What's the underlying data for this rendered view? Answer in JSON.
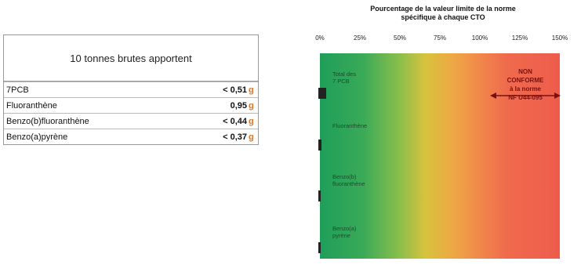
{
  "table": {
    "header": "10 tonnes brutes apportent",
    "unit": "g",
    "rows": [
      {
        "name": "7PCB",
        "value": "< 0,51"
      },
      {
        "name": "Fluoranthène",
        "value": "0,95"
      },
      {
        "name": "Benzo(b)fluoranthène",
        "value": "< 0,44"
      },
      {
        "name": "Benzo(a)pyrène",
        "value": "< 0,37"
      }
    ]
  },
  "chart_data": {
    "type": "bar",
    "orientation": "horizontal",
    "title_line1": "Pourcentage de la valeur limite de la norme",
    "title_line2": "spécifique à chaque CTO",
    "tick_labels": [
      "0%",
      "25%",
      "50%",
      "75%",
      "100%",
      "125%",
      "150%"
    ],
    "xlim": [
      0,
      150
    ],
    "categories": [
      [
        "Total des",
        "7 PCB"
      ],
      [
        "Fluoranthène"
      ],
      [
        "Benzo(b)",
        "fluoranthène"
      ],
      [
        "Benzo(a)",
        "pyrène"
      ]
    ],
    "values": [
      5,
      2,
      1,
      1
    ],
    "annotation": [
      "NON",
      "CONFORME",
      "à la norme",
      "NF U44-095"
    ],
    "colors": {
      "low": "#1f9e5a",
      "mid": "#d8c23d",
      "high": "#ee5c4b",
      "bar": "#222222",
      "annotation": "#7a1010"
    }
  }
}
